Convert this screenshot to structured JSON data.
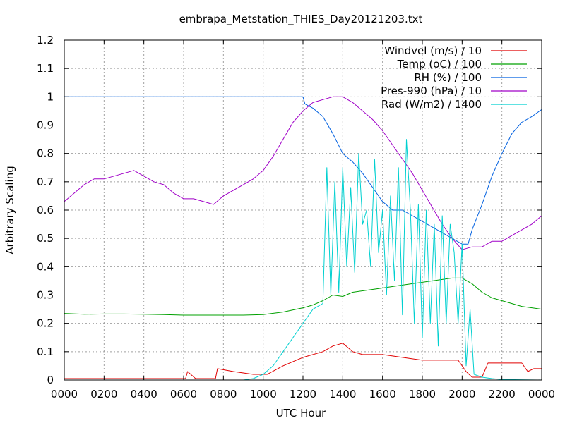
{
  "chart_data": {
    "type": "line",
    "title": "embrapa_Metstation_THIES_Day20121203.txt",
    "xlabel": "UTC Hour",
    "ylabel": "Arbitrary Scaling",
    "xlim": [
      0,
      24
    ],
    "ylim": [
      0,
      1.2
    ],
    "grid": true,
    "legend_position": "top-right",
    "x_ticks": [
      "0000",
      "0200",
      "0400",
      "0600",
      "0800",
      "1000",
      "1200",
      "1400",
      "1600",
      "1800",
      "2000",
      "2200",
      "0000"
    ],
    "y_ticks": [
      "0",
      "0.1",
      "0.2",
      "0.3",
      "0.4",
      "0.5",
      "0.6",
      "0.7",
      "0.8",
      "0.9",
      "1",
      "1.1",
      "1.2"
    ],
    "series": [
      {
        "name": "Windvel (m/s) / 10",
        "color": "#e00000",
        "points": [
          [
            0,
            0.005
          ],
          [
            6.1,
            0.005
          ],
          [
            6.2,
            0.03
          ],
          [
            6.6,
            0.005
          ],
          [
            7.6,
            0.005
          ],
          [
            7.7,
            0.04
          ],
          [
            8.5,
            0.03
          ],
          [
            9.5,
            0.02
          ],
          [
            10.2,
            0.02
          ],
          [
            11,
            0.05
          ],
          [
            12,
            0.08
          ],
          [
            12.5,
            0.09
          ],
          [
            13,
            0.1
          ],
          [
            13.5,
            0.12
          ],
          [
            14,
            0.13
          ],
          [
            14.5,
            0.1
          ],
          [
            15,
            0.09
          ],
          [
            16,
            0.09
          ],
          [
            17,
            0.08
          ],
          [
            18,
            0.07
          ],
          [
            19,
            0.07
          ],
          [
            19.8,
            0.07
          ],
          [
            20.2,
            0.03
          ],
          [
            20.5,
            0.01
          ],
          [
            21,
            0.01
          ],
          [
            21.3,
            0.06
          ],
          [
            22,
            0.06
          ],
          [
            23,
            0.06
          ],
          [
            23.3,
            0.03
          ],
          [
            23.6,
            0.04
          ],
          [
            24,
            0.04
          ]
        ]
      },
      {
        "name": "Temp (oC) / 100",
        "color": "#00a000",
        "points": [
          [
            0,
            0.235
          ],
          [
            1,
            0.232
          ],
          [
            2,
            0.233
          ],
          [
            3,
            0.233
          ],
          [
            4,
            0.232
          ],
          [
            5,
            0.231
          ],
          [
            6,
            0.229
          ],
          [
            7,
            0.229
          ],
          [
            8,
            0.229
          ],
          [
            9,
            0.229
          ],
          [
            10,
            0.231
          ],
          [
            11,
            0.24
          ],
          [
            12,
            0.255
          ],
          [
            12.5,
            0.265
          ],
          [
            13,
            0.28
          ],
          [
            13.5,
            0.3
          ],
          [
            14,
            0.295
          ],
          [
            14.5,
            0.31
          ],
          [
            15,
            0.315
          ],
          [
            16,
            0.325
          ],
          [
            17,
            0.335
          ],
          [
            18,
            0.345
          ],
          [
            19,
            0.355
          ],
          [
            19.5,
            0.36
          ],
          [
            20,
            0.36
          ],
          [
            20.5,
            0.34
          ],
          [
            21,
            0.31
          ],
          [
            21.5,
            0.29
          ],
          [
            22,
            0.28
          ],
          [
            23,
            0.26
          ],
          [
            24,
            0.25
          ]
        ]
      },
      {
        "name": "RH (%) / 100",
        "color": "#0060e0",
        "points": [
          [
            0,
            1
          ],
          [
            12,
            1
          ],
          [
            12.1,
            0.975
          ],
          [
            12.5,
            0.96
          ],
          [
            13,
            0.93
          ],
          [
            13.5,
            0.87
          ],
          [
            14,
            0.8
          ],
          [
            14.5,
            0.77
          ],
          [
            15,
            0.73
          ],
          [
            15.5,
            0.68
          ],
          [
            16,
            0.63
          ],
          [
            16.5,
            0.6
          ],
          [
            17,
            0.6
          ],
          [
            17.5,
            0.58
          ],
          [
            18,
            0.56
          ],
          [
            18.5,
            0.54
          ],
          [
            19,
            0.52
          ],
          [
            19.5,
            0.5
          ],
          [
            20,
            0.48
          ],
          [
            20.3,
            0.48
          ],
          [
            20.5,
            0.53
          ],
          [
            21,
            0.62
          ],
          [
            21.5,
            0.72
          ],
          [
            22,
            0.8
          ],
          [
            22.5,
            0.87
          ],
          [
            23,
            0.91
          ],
          [
            23.5,
            0.93
          ],
          [
            24,
            0.955
          ]
        ]
      },
      {
        "name": "Pres-990 (hPa) / 10",
        "color": "#a000c8",
        "points": [
          [
            0,
            0.63
          ],
          [
            0.5,
            0.66
          ],
          [
            1,
            0.69
          ],
          [
            1.5,
            0.71
          ],
          [
            2,
            0.71
          ],
          [
            2.5,
            0.72
          ],
          [
            3,
            0.73
          ],
          [
            3.5,
            0.74
          ],
          [
            4,
            0.72
          ],
          [
            4.5,
            0.7
          ],
          [
            5,
            0.69
          ],
          [
            5.5,
            0.66
          ],
          [
            6,
            0.64
          ],
          [
            6.5,
            0.64
          ],
          [
            7,
            0.63
          ],
          [
            7.5,
            0.62
          ],
          [
            8,
            0.65
          ],
          [
            8.5,
            0.67
          ],
          [
            9,
            0.69
          ],
          [
            9.5,
            0.71
          ],
          [
            10,
            0.74
          ],
          [
            10.5,
            0.79
          ],
          [
            11,
            0.85
          ],
          [
            11.5,
            0.91
          ],
          [
            12,
            0.95
          ],
          [
            12.5,
            0.98
          ],
          [
            13,
            0.99
          ],
          [
            13.5,
            1
          ],
          [
            14,
            1
          ],
          [
            14.5,
            0.98
          ],
          [
            15,
            0.95
          ],
          [
            15.5,
            0.92
          ],
          [
            16,
            0.88
          ],
          [
            16.5,
            0.83
          ],
          [
            17,
            0.78
          ],
          [
            17.5,
            0.73
          ],
          [
            18,
            0.67
          ],
          [
            18.5,
            0.61
          ],
          [
            19,
            0.55
          ],
          [
            19.5,
            0.5
          ],
          [
            20,
            0.46
          ],
          [
            20.5,
            0.47
          ],
          [
            21,
            0.47
          ],
          [
            21.5,
            0.49
          ],
          [
            22,
            0.49
          ],
          [
            22.5,
            0.51
          ],
          [
            23,
            0.53
          ],
          [
            23.5,
            0.55
          ],
          [
            24,
            0.58
          ]
        ]
      },
      {
        "name": "Rad (W/m2) / 1400",
        "color": "#00d0d0",
        "points": [
          [
            0,
            0
          ],
          [
            9,
            0
          ],
          [
            9.5,
            0.005
          ],
          [
            10,
            0.02
          ],
          [
            10.5,
            0.05
          ],
          [
            11,
            0.1
          ],
          [
            11.5,
            0.15
          ],
          [
            12,
            0.2
          ],
          [
            12.5,
            0.25
          ],
          [
            13,
            0.27
          ],
          [
            13.2,
            0.75
          ],
          [
            13.4,
            0.3
          ],
          [
            13.6,
            0.7
          ],
          [
            13.8,
            0.31
          ],
          [
            14,
            0.75
          ],
          [
            14.2,
            0.4
          ],
          [
            14.4,
            0.68
          ],
          [
            14.6,
            0.38
          ],
          [
            14.8,
            0.8
          ],
          [
            15,
            0.55
          ],
          [
            15.2,
            0.6
          ],
          [
            15.4,
            0.4
          ],
          [
            15.6,
            0.78
          ],
          [
            15.8,
            0.45
          ],
          [
            16,
            0.6
          ],
          [
            16.2,
            0.3
          ],
          [
            16.4,
            0.65
          ],
          [
            16.6,
            0.35
          ],
          [
            16.8,
            0.75
          ],
          [
            17,
            0.23
          ],
          [
            17.2,
            0.85
          ],
          [
            17.4,
            0.6
          ],
          [
            17.6,
            0.2
          ],
          [
            17.8,
            0.62
          ],
          [
            18,
            0.15
          ],
          [
            18.2,
            0.6
          ],
          [
            18.4,
            0.2
          ],
          [
            18.6,
            0.55
          ],
          [
            18.8,
            0.12
          ],
          [
            19,
            0.58
          ],
          [
            19.2,
            0.2
          ],
          [
            19.4,
            0.55
          ],
          [
            19.6,
            0.45
          ],
          [
            19.8,
            0.2
          ],
          [
            20,
            0.48
          ],
          [
            20.2,
            0.05
          ],
          [
            20.4,
            0.25
          ],
          [
            20.6,
            0.02
          ],
          [
            21,
            0.01
          ],
          [
            21.5,
            0.005
          ],
          [
            22,
            0.002
          ],
          [
            24,
            0
          ]
        ]
      }
    ]
  }
}
